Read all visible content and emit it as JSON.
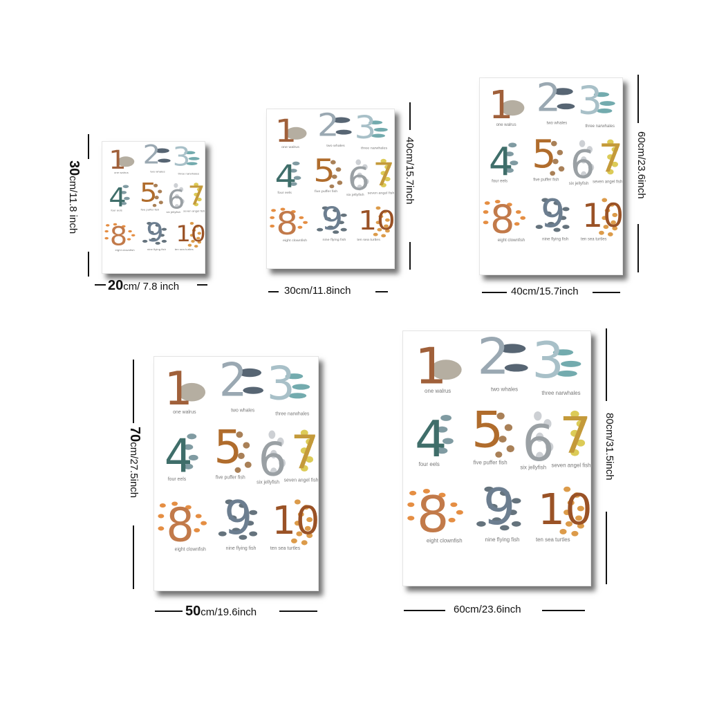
{
  "posters": [
    {
      "size": "20x30",
      "width_label": {
        "value": "20",
        "unit": "cm/ 7.8 inch"
      },
      "height_label": {
        "value": "30",
        "unit": "cm/11.8 inch"
      }
    },
    {
      "size": "30x40",
      "width_label": {
        "value": "",
        "unit": "30cm/11.8inch"
      },
      "height_label": {
        "value": "",
        "unit": "40cm/15.7inch"
      }
    },
    {
      "size": "40x60",
      "width_label": {
        "value": "",
        "unit": "40cm/15.7inch"
      },
      "height_label": {
        "value": "",
        "unit": "60cm/23.6inch"
      }
    },
    {
      "size": "50x70",
      "width_label": {
        "value": "50",
        "unit": "cm/19.6inch"
      },
      "height_label": {
        "value": "70",
        "unit": "cm/27.5inch"
      }
    },
    {
      "size": "60x80",
      "width_label": {
        "value": "",
        "unit": "60cm/23.6inch"
      },
      "height_label": {
        "value": "",
        "unit": "80cm/31.5inch"
      }
    }
  ],
  "chart": {
    "items": [
      {
        "numeral": "1",
        "caption": "one walrus",
        "color": "#a0603a",
        "animal_color": "#a8a090"
      },
      {
        "numeral": "2",
        "caption": "two whales",
        "color": "#9aa8b2",
        "animal_color": "#3a4a5a"
      },
      {
        "numeral": "3",
        "caption": "three narwhales",
        "color": "#a8c0c8",
        "animal_color": "#5a9ca0"
      },
      {
        "numeral": "4",
        "caption": "four eels",
        "color": "#3f6e6a",
        "animal_color": "#6a8a92"
      },
      {
        "numeral": "5",
        "caption": "five puffer fish",
        "color": "#b06c2c",
        "animal_color": "#9a6a3a"
      },
      {
        "numeral": "6",
        "caption": "six jellyfish",
        "color": "#9aa0a4",
        "animal_color": "#c4c8cc"
      },
      {
        "numeral": "7",
        "caption": "seven angel fish",
        "color": "#c49a3a",
        "animal_color": "#d6c23a"
      },
      {
        "numeral": "8",
        "caption": "eight clownfish",
        "color": "#c27a4a",
        "animal_color": "#e07a22"
      },
      {
        "numeral": "9",
        "caption": "nine flying fish",
        "color": "#6c7e90",
        "animal_color": "#4a5a66"
      },
      {
        "numeral": "10",
        "caption": "ten sea turtles",
        "color": "#9a5226",
        "animal_color": "#d68a2a"
      }
    ]
  }
}
